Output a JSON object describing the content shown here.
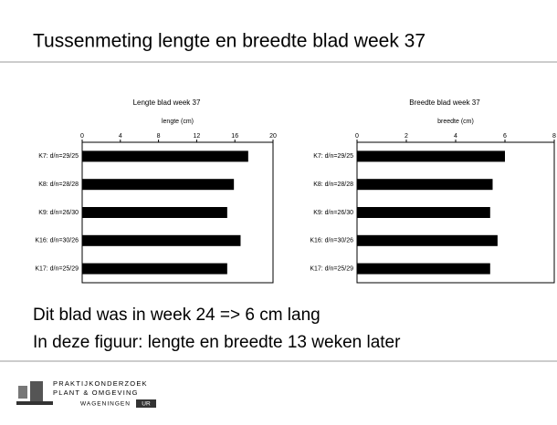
{
  "slide_title": "Tussenmeting lengte en breedte blad week 37",
  "chart_data": [
    {
      "type": "bar",
      "orientation": "horizontal",
      "title": "Lengte blad week 37",
      "x_label": "lengte (cm)",
      "categories": [
        "K7: d/n=29/25",
        "K8: d/n=28/28",
        "K9: d/n=26/30",
        "K16: d/n=30/26",
        "K17: d/n=25/29"
      ],
      "values": [
        17.4,
        15.9,
        15.2,
        16.6,
        15.2
      ],
      "color": "#000000",
      "xlim": [
        0,
        20
      ],
      "xticks": [
        0,
        4,
        8,
        12,
        16,
        20
      ]
    },
    {
      "type": "bar",
      "orientation": "horizontal",
      "title": "Breedte blad week 37",
      "x_label": "breedte (cm)",
      "categories": [
        "K7: d/n=29/25",
        "K8: d/n=28/28",
        "K9: d/n=26/30",
        "K16: d/n=30/26",
        "K17: d/n=25/29"
      ],
      "values": [
        6.0,
        5.5,
        5.4,
        5.7,
        5.4
      ],
      "color": "#000000",
      "xlim": [
        0,
        8
      ],
      "xticks": [
        0,
        2,
        4,
        6,
        8
      ]
    }
  ],
  "body_lines": [
    "Dit blad was in week 24 => 6 cm lang",
    "In deze figuur: lengte en breedte 13 weken later"
  ],
  "logo": {
    "line1": "PRAKTIJKONDERZOEK",
    "line2": "PLANT & OMGEVING",
    "line3": "WAGENINGEN",
    "badge": "UR"
  }
}
